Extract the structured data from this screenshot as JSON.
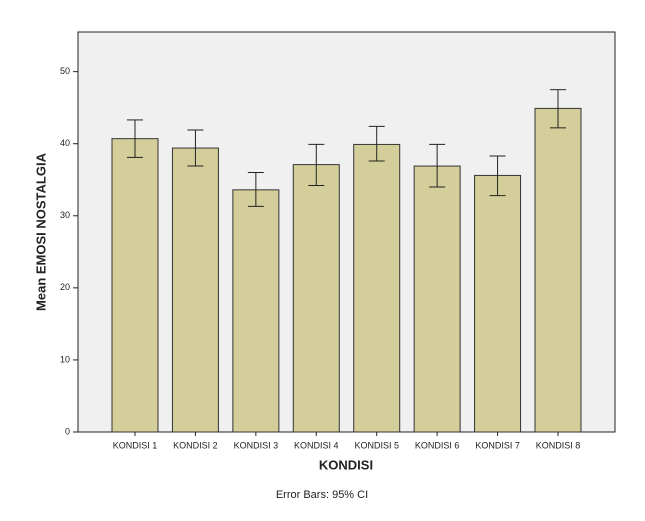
{
  "chart_data": {
    "type": "bar",
    "categories": [
      "KONDISI 1",
      "KONDISI 2",
      "KONDISI 3",
      "KONDISI 4",
      "KONDISI 5",
      "KONDISI 6",
      "KONDISI 7",
      "KONDISI 8"
    ],
    "values": [
      40.7,
      39.4,
      33.6,
      37.1,
      39.9,
      36.9,
      35.6,
      44.9
    ],
    "error_low": [
      38.1,
      36.9,
      31.3,
      34.2,
      37.6,
      34.0,
      32.8,
      42.2
    ],
    "error_high": [
      43.3,
      41.9,
      36.0,
      39.9,
      42.4,
      39.9,
      38.3,
      47.5
    ],
    "color": "#d4cf9a",
    "ylim": [
      0,
      55.5
    ],
    "yticks": [
      0,
      10,
      20,
      30,
      40,
      50
    ],
    "y_label": "Mean EMOSI NOSTALGIA",
    "x_label": "KONDISI",
    "note": "Error Bars: 95% CI"
  }
}
